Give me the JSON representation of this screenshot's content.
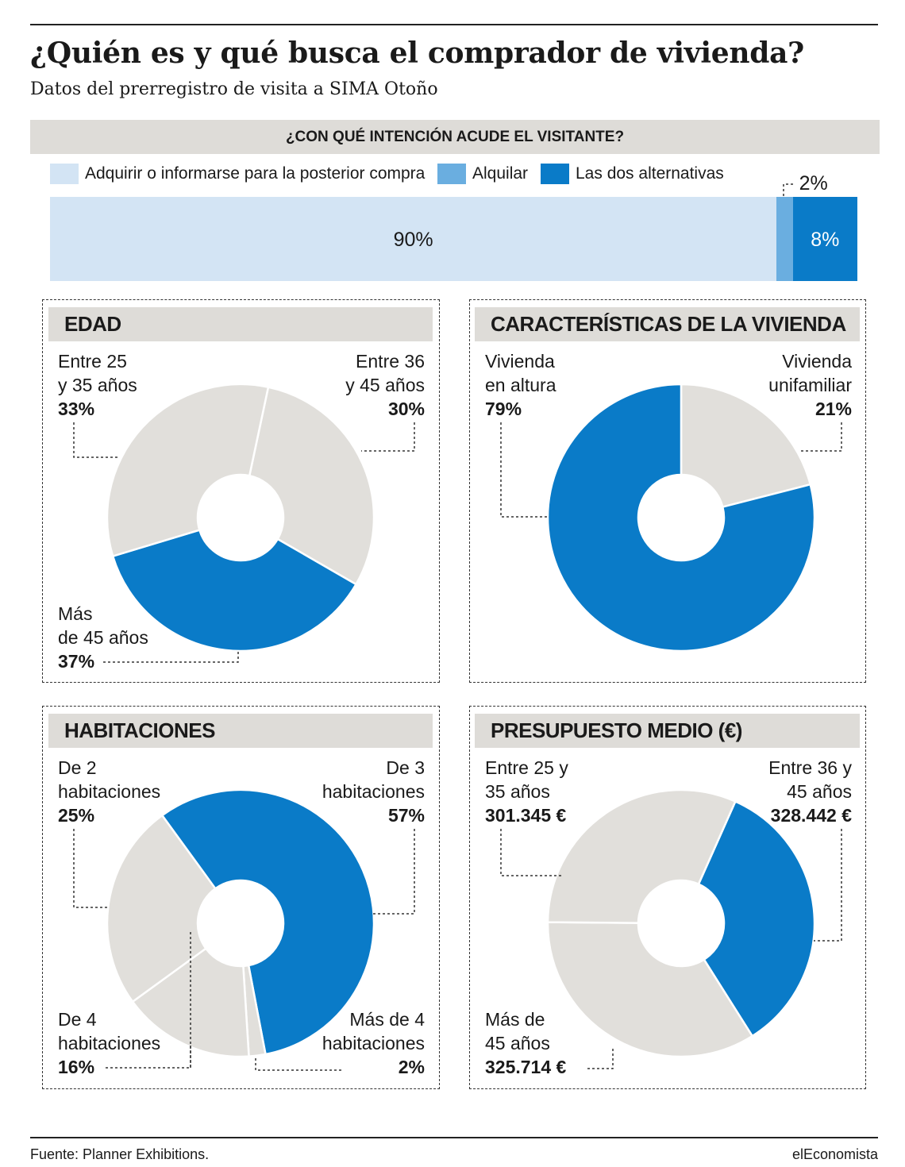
{
  "title": "¿Quién es y qué busca el comprador de vivienda?",
  "subtitle": "Datos del prerregistro de visita a SIMA Otoño",
  "footer": {
    "source": "Fuente: Planner Exhibitions.",
    "brand": "elEconomista"
  },
  "colors": {
    "blue": "#0a7bc8",
    "lightblue": "#d3e4f4",
    "midblue": "#6aaee0",
    "grey": "#e1dfdb",
    "header": "#dedcd8"
  },
  "chart_data": [
    {
      "type": "bar",
      "title": "¿CON QUÉ INTENCIÓN ACUDE EL VISITANTE?",
      "stacked": true,
      "series": [
        {
          "name": "Adquirir o informarse para la posterior compra",
          "value": 90,
          "label": "90%",
          "color": "#d3e4f4"
        },
        {
          "name": "Alquilar",
          "value": 2,
          "label": "2%",
          "color": "#6aaee0"
        },
        {
          "name": "Las dos alternativas",
          "value": 8,
          "label": "8%",
          "color": "#0a7bc8"
        }
      ]
    },
    {
      "type": "pie",
      "title": "EDAD",
      "slices": [
        {
          "line1": "Entre 25",
          "line2": "y 35 años",
          "value": 33,
          "label": "33%",
          "color": "#e1dfdb"
        },
        {
          "line1": "Entre 36",
          "line2": "y 45 años",
          "value": 30,
          "label": "30%",
          "color": "#e1dfdb"
        },
        {
          "line1": "Más",
          "line2": "de 45 años",
          "value": 37,
          "label": "37%",
          "color": "#0a7bc8"
        }
      ]
    },
    {
      "type": "pie",
      "title": "CARACTERÍSTICAS DE LA VIVIENDA",
      "slices": [
        {
          "line1": "Vivienda",
          "line2": "unifamiliar",
          "value": 21,
          "label": "21%",
          "color": "#e1dfdb"
        },
        {
          "line1": "Vivienda",
          "line2": "en altura",
          "value": 79,
          "label": "79%",
          "color": "#0a7bc8"
        }
      ]
    },
    {
      "type": "pie",
      "title": "HABITACIONES",
      "slices": [
        {
          "line1": "De 3",
          "line2": "habitaciones",
          "value": 57,
          "label": "57%",
          "color": "#0a7bc8"
        },
        {
          "line1": "Más de 4",
          "line2": "habitaciones",
          "value": 2,
          "label": "2%",
          "color": "#e1dfdb"
        },
        {
          "line1": "De 4",
          "line2": "habitaciones",
          "value": 16,
          "label": "16%",
          "color": "#e1dfdb"
        },
        {
          "line1": "De 2",
          "line2": "habitaciones",
          "value": 25,
          "label": "25%",
          "color": "#e1dfdb"
        }
      ]
    },
    {
      "type": "pie",
      "title": "PRESUPUESTO MEDIO (€)",
      "slices": [
        {
          "line1": "Entre 36 y",
          "line2": "45 años",
          "value": 328442,
          "label": "328.442 €",
          "color": "#0a7bc8"
        },
        {
          "line1": "Más de",
          "line2": "45 años",
          "value": 325714,
          "label": "325.714 €",
          "color": "#e1dfdb"
        },
        {
          "line1": "Entre 25 y",
          "line2": "35 años",
          "value": 301345,
          "label": "301.345 €",
          "color": "#e1dfdb"
        }
      ]
    }
  ]
}
